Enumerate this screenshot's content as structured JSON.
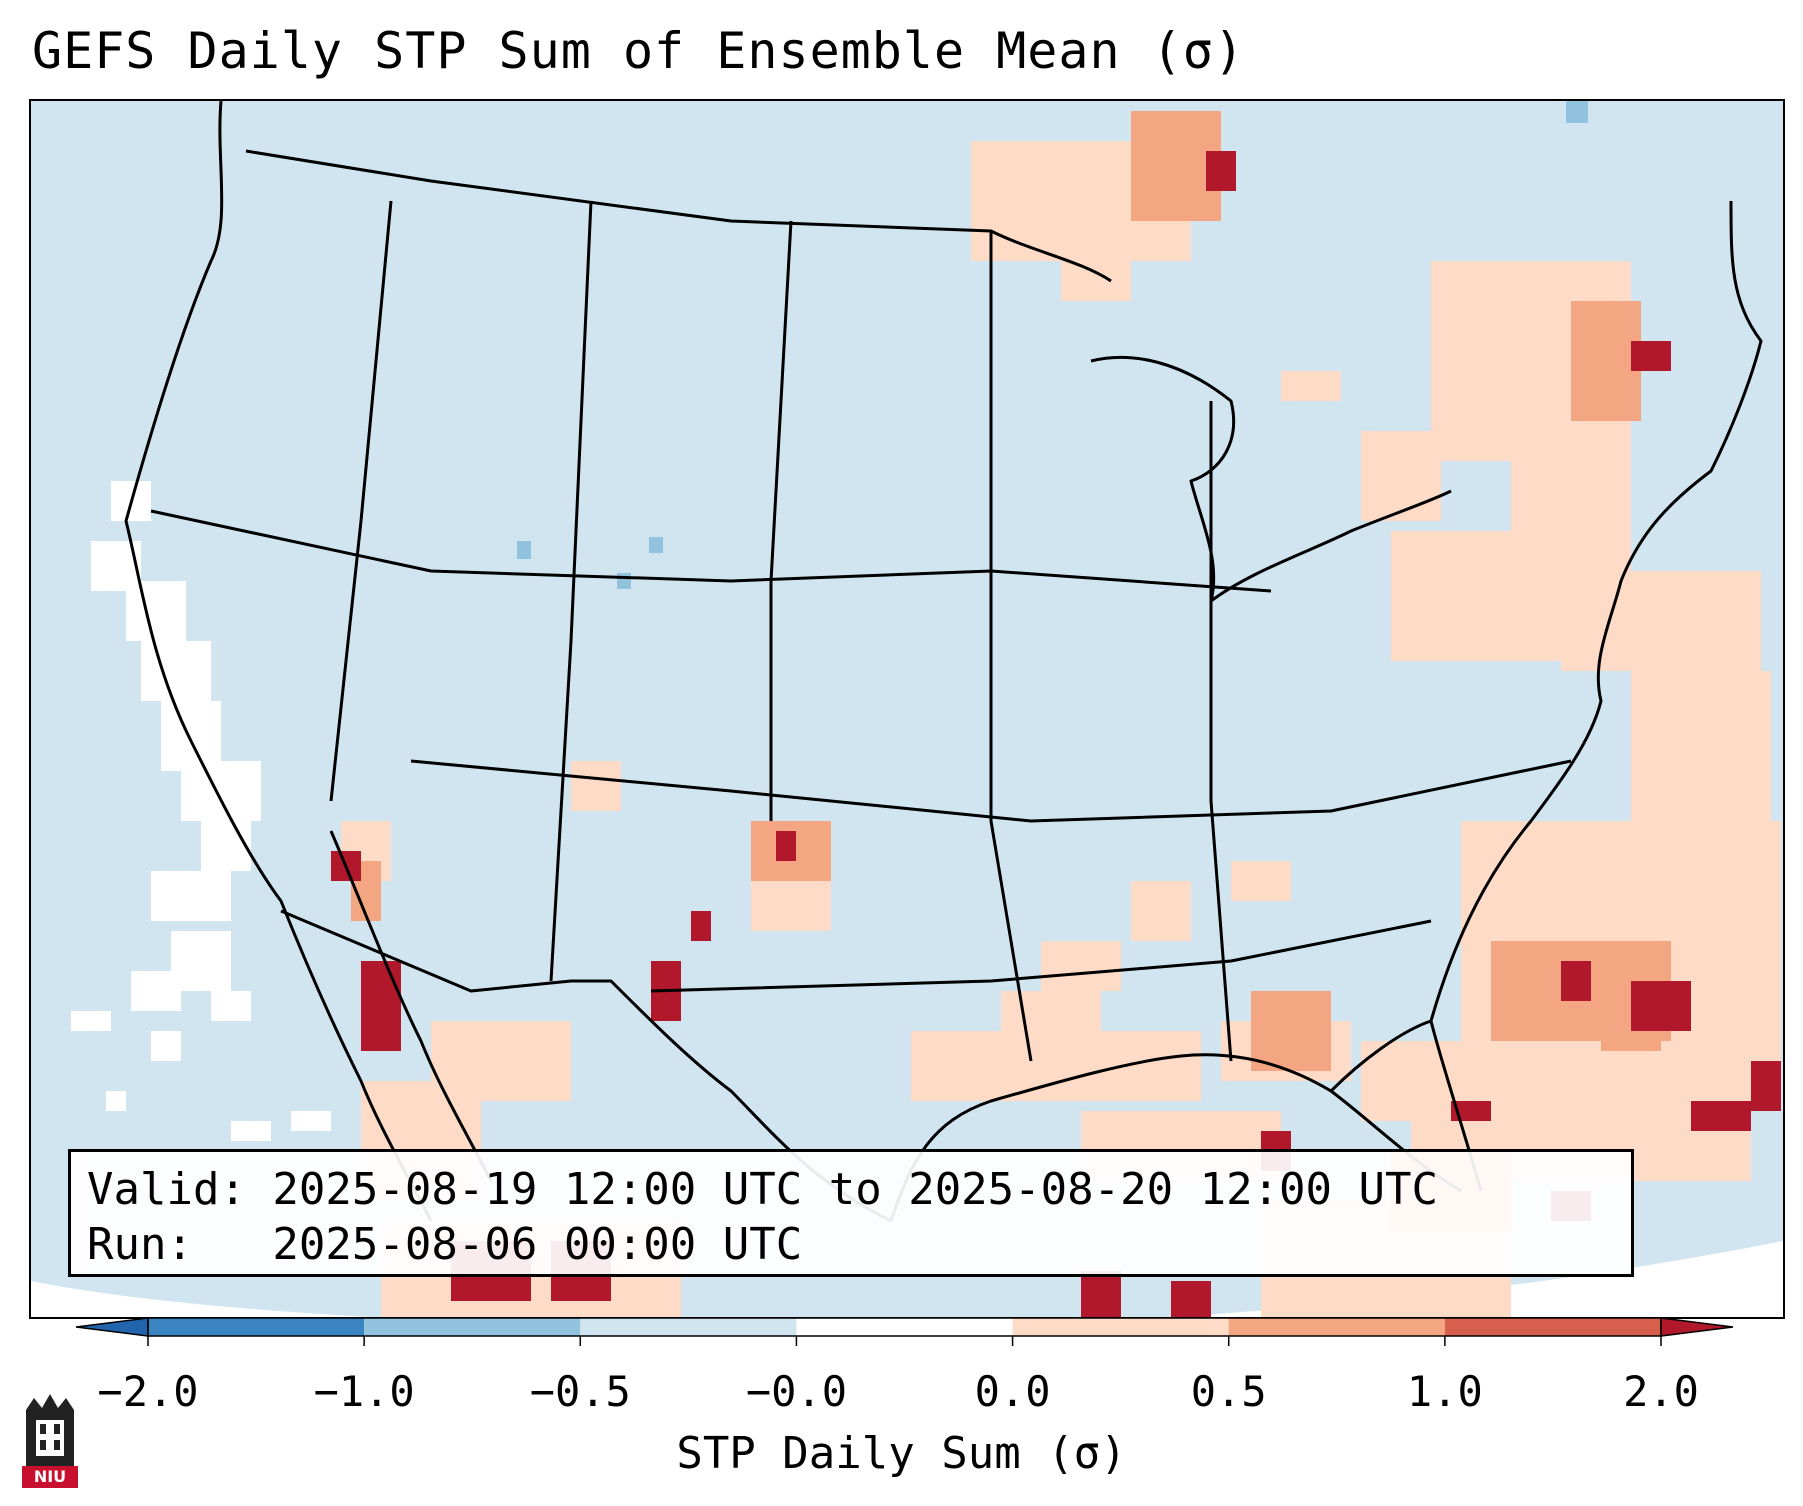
{
  "title": "GEFS Daily STP Sum of Ensemble Mean (σ)",
  "info": {
    "valid_line": "Valid: 2025-08-19 12:00 UTC to 2025-08-20 12:00 UTC",
    "run_line": "Run:   2025-08-06 00:00 UTC"
  },
  "colorbar": {
    "label": "STP Daily Sum (σ)",
    "ticks": [
      "−2.0",
      "−1.0",
      "−0.5",
      "−0.0",
      "0.0",
      "0.5",
      "1.0",
      "2.0"
    ],
    "colors": [
      "#3a85c1",
      "#92c3de",
      "#d1e5f0",
      "#ffffff",
      "#fddbc7",
      "#f4a582",
      "#d6604d",
      "#b2182b"
    ],
    "extend_low_color": "#2166ac",
    "extend_high_color": "#b2182b"
  },
  "map": {
    "background_color": "#d1e5f0",
    "region": "CONUS",
    "legend": {
      "light_positive": "#fddbc7",
      "medium_positive": "#f4a582",
      "strong_positive": "#d6604d",
      "extreme_positive": "#b2182b",
      "negative": "#92c3de"
    }
  },
  "logo": {
    "text": "NIU"
  }
}
